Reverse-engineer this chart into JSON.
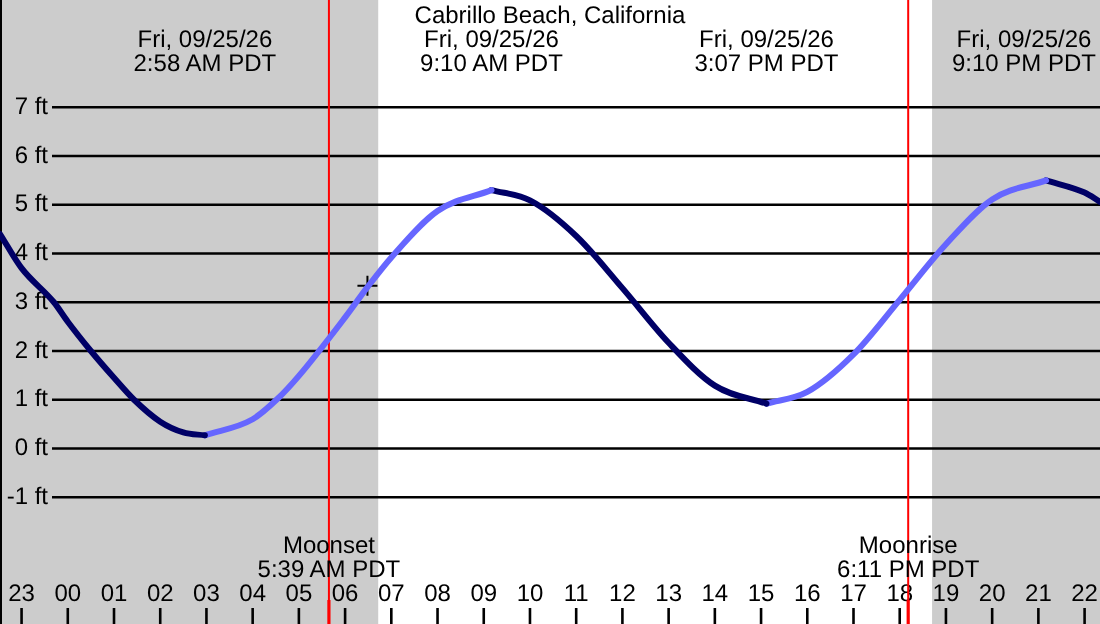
{
  "chart_data": {
    "type": "line",
    "title": "Cabrillo Beach, California",
    "xlim": [
      "--09-24T22:32",
      "--09-25T22:20"
    ],
    "ylim": [
      -3.6,
      9.2
    ],
    "xticks": [
      {
        "value": "--09-24T23:00",
        "label": "23"
      },
      {
        "value": "--09-25T00:00",
        "label": "00"
      },
      {
        "value": "--09-25T01:00",
        "label": "01"
      },
      {
        "value": "--09-25T02:00",
        "label": "02"
      },
      {
        "value": "--09-25T03:00",
        "label": "03"
      },
      {
        "value": "--09-25T04:00",
        "label": "04"
      },
      {
        "value": "--09-25T05:00",
        "label": "05"
      },
      {
        "value": "--09-25T06:00",
        "label": "06"
      },
      {
        "value": "--09-25T07:00",
        "label": "07"
      },
      {
        "value": "--09-25T08:00",
        "label": "08"
      },
      {
        "value": "--09-25T09:00",
        "label": "09"
      },
      {
        "value": "--09-25T10:00",
        "label": "10"
      },
      {
        "value": "--09-25T11:00",
        "label": "11"
      },
      {
        "value": "--09-25T12:00",
        "label": "12"
      },
      {
        "value": "--09-25T13:00",
        "label": "13"
      },
      {
        "value": "--09-25T14:00",
        "label": "14"
      },
      {
        "value": "--09-25T15:00",
        "label": "15"
      },
      {
        "value": "--09-25T16:00",
        "label": "16"
      },
      {
        "value": "--09-25T17:00",
        "label": "17"
      },
      {
        "value": "--09-25T18:00",
        "label": "18"
      },
      {
        "value": "--09-25T19:00",
        "label": "19"
      },
      {
        "value": "--09-25T20:00",
        "label": "20"
      },
      {
        "value": "--09-25T21:00",
        "label": "21"
      },
      {
        "value": "--09-25T22:00",
        "label": "22"
      }
    ],
    "yticks": [
      {
        "value": -1,
        "label": "-1 ft"
      },
      {
        "value": 0,
        "label": "0 ft"
      },
      {
        "value": 1,
        "label": "1 ft"
      },
      {
        "value": 2,
        "label": "2 ft"
      },
      {
        "value": 3,
        "label": "3 ft"
      },
      {
        "value": 4,
        "label": "4 ft"
      },
      {
        "value": 5,
        "label": "5 ft"
      },
      {
        "value": 6,
        "label": "6 ft"
      },
      {
        "value": 7,
        "label": "7 ft"
      }
    ],
    "grid": "y",
    "bands": [
      {
        "axis": "x",
        "from": "--09-24T22:32",
        "to": "--09-25T06:43",
        "color": "#cccccc"
      },
      {
        "axis": "x",
        "from": "--09-25T18:42",
        "to": "--09-25T22:20",
        "color": "#cccccc"
      }
    ],
    "ref_lines": [
      {
        "axis": "x",
        "value": "--09-25T05:39",
        "label": "Moonset\n5:39 AM PDT",
        "color": "#ff0000"
      },
      {
        "axis": "x",
        "value": "--09-25T18:11",
        "label": "Moonrise\n6:11 PM PDT",
        "color": "#ff0000"
      }
    ],
    "annotations": [
      "Fri, 09/25/26\n2:58 AM PDT",
      "Fri, 09/25/26\n9:10 AM PDT",
      "Fri, 09/25/26\n3:07 PM PDT",
      "Fri, 09/25/26\n9:10 PM PDT"
    ],
    "series": [
      {
        "color": "#000066",
        "x": [
          "--09-24T22:32",
          "--09-24T23:00",
          "--09-24T23:42",
          "--09-25T00:00",
          "--09-25T00:30",
          "--09-25T01:00",
          "--09-25T01:26",
          "--09-25T02:00",
          "--09-25T02:30",
          "--09-25T02:58"
        ],
        "values": [
          4.4,
          3.7,
          3.0,
          2.6,
          2.0,
          1.45,
          1.0,
          0.55,
          0.33,
          0.27
        ]
      },
      {
        "color": "#6666ff",
        "x": [
          "--09-25T02:58",
          "--09-25T04:00",
          "--09-25T04:33",
          "--09-25T05:00",
          "--09-25T06:00",
          "--09-25T06:29",
          "--09-25T07:00",
          "--09-25T08:00",
          "--09-25T09:10"
        ],
        "values": [
          0.27,
          0.6,
          1.03,
          1.49,
          2.69,
          3.31,
          3.92,
          4.87,
          5.3
        ]
      },
      {
        "color": "#000066",
        "x": [
          "--09-25T09:10",
          "--09-25T10:00",
          "--09-25T11:00",
          "--09-25T12:00",
          "--09-25T13:00",
          "--09-25T14:00",
          "--09-25T15:07"
        ],
        "values": [
          5.3,
          5.09,
          4.36,
          3.29,
          2.17,
          1.29,
          0.92
        ]
      },
      {
        "color": "#6666ff",
        "x": [
          "--09-25T15:07",
          "--09-25T16:00",
          "--09-25T17:00",
          "--09-25T18:00",
          "--09-25T19:00",
          "--09-25T20:00",
          "--09-25T21:10"
        ],
        "values": [
          0.92,
          1.16,
          1.93,
          3.05,
          4.19,
          5.11,
          5.5
        ]
      },
      {
        "color": "#000066",
        "x": [
          "--09-25T21:10",
          "--09-25T22:00",
          "--09-25T22:20"
        ],
        "values": [
          5.5,
          5.25,
          5.06
        ]
      },
      {
        "type": "scatter",
        "color": "#000000",
        "marker": "cross",
        "x": [
          "--09-25T06:29"
        ],
        "values": [
          3.34
        ]
      }
    ]
  }
}
